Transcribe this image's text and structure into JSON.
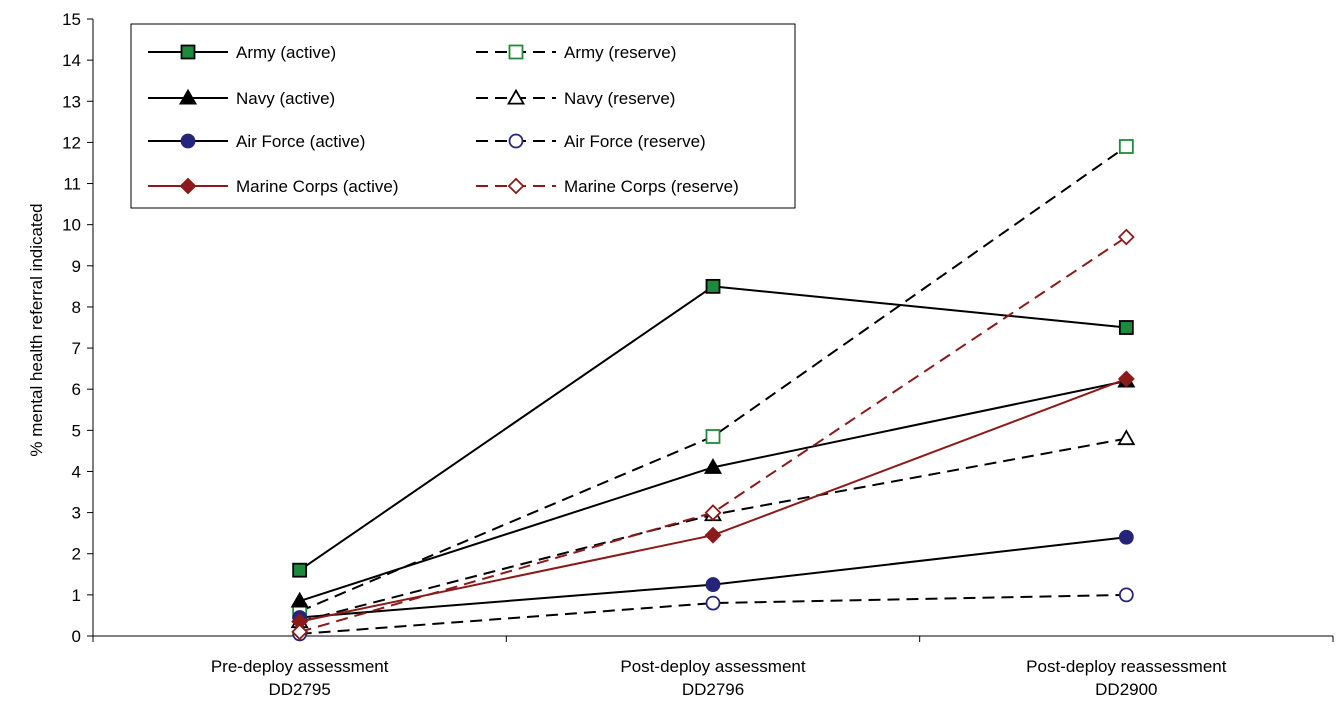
{
  "chart_data": {
    "type": "line",
    "title": "",
    "xlabel": "",
    "ylabel": "% mental health referral indicated",
    "ylim": [
      0,
      15
    ],
    "yticks": [
      0,
      1,
      2,
      3,
      4,
      5,
      6,
      7,
      8,
      9,
      10,
      11,
      12,
      13,
      14,
      15
    ],
    "grid": false,
    "legend_position": "top-left",
    "categories": [
      [
        "Pre-deploy assessment",
        "DD2795"
      ],
      [
        "Post-deploy assessment",
        "DD2796"
      ],
      [
        "Post-deploy reassessment",
        "DD2900"
      ]
    ],
    "series": [
      {
        "name": "Army (active)",
        "values": [
          1.6,
          8.5,
          7.5
        ],
        "color": "#000000",
        "marker": "square",
        "marker_fill": "#1e8a3c",
        "marker_stroke": "#000000",
        "dashed": false
      },
      {
        "name": "Army (reserve)",
        "values": [
          0.6,
          4.85,
          11.9
        ],
        "color": "#000000",
        "marker": "square",
        "marker_fill": "#ffffff",
        "marker_stroke": "#1e8a3c",
        "dashed": true
      },
      {
        "name": "Navy (active)",
        "values": [
          0.85,
          4.1,
          6.2
        ],
        "color": "#000000",
        "marker": "triangle",
        "marker_fill": "#000000",
        "marker_stroke": "#000000",
        "dashed": false
      },
      {
        "name": "Navy (reserve)",
        "values": [
          0.35,
          2.95,
          4.8
        ],
        "color": "#000000",
        "marker": "triangle",
        "marker_fill": "#ffffff",
        "marker_stroke": "#000000",
        "dashed": true
      },
      {
        "name": "Air Force (active)",
        "values": [
          0.45,
          1.25,
          2.4
        ],
        "color": "#000000",
        "marker": "circle",
        "marker_fill": "#24247a",
        "marker_stroke": "#24247a",
        "dashed": false
      },
      {
        "name": "Air Force (reserve)",
        "values": [
          0.05,
          0.8,
          1.0
        ],
        "color": "#000000",
        "marker": "circle",
        "marker_fill": "#ffffff",
        "marker_stroke": "#24247a",
        "dashed": true
      },
      {
        "name": "Marine Corps (active)",
        "values": [
          0.35,
          2.45,
          6.25
        ],
        "color": "#8b1a1a",
        "marker": "diamond",
        "marker_fill": "#8b1a1a",
        "marker_stroke": "#8b1a1a",
        "dashed": false
      },
      {
        "name": "Marine Corps (reserve)",
        "values": [
          0.1,
          3.0,
          9.7
        ],
        "color": "#8b1a1a",
        "marker": "diamond",
        "marker_fill": "#ffffff",
        "marker_stroke": "#8b1a1a",
        "dashed": true
      }
    ]
  }
}
